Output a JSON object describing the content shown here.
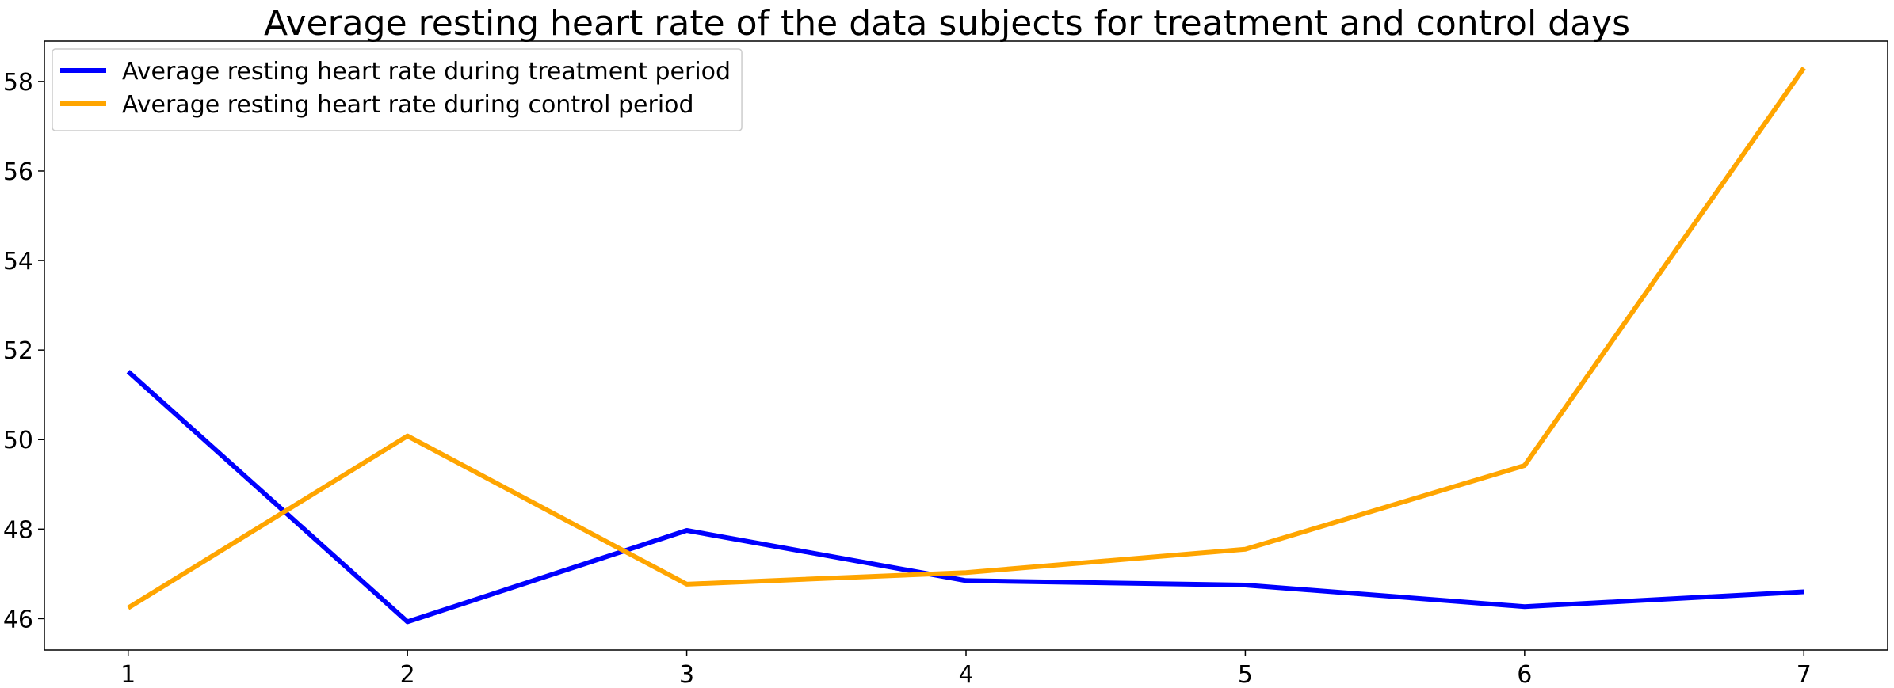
{
  "chart_data": {
    "type": "line",
    "title": "Average resting heart rate of the data subjects for treatment and control days",
    "xlabel": "",
    "ylabel": "",
    "x": [
      1,
      2,
      3,
      4,
      5,
      6,
      7
    ],
    "xticks": [
      "1",
      "2",
      "3",
      "4",
      "5",
      "6",
      "7"
    ],
    "xlim": [
      0.7,
      7.3
    ],
    "ylim": [
      45.3,
      58.9
    ],
    "yticks": [
      "46",
      "48",
      "50",
      "52",
      "54",
      "56",
      "58"
    ],
    "grid": false,
    "legend_position": "upper-left",
    "series": [
      {
        "name": "Average resting heart rate during treatment period",
        "color": "#0000ff",
        "values": [
          51.52,
          45.93,
          47.97,
          46.85,
          46.75,
          46.27,
          46.6
        ]
      },
      {
        "name": "Average resting heart rate during control period",
        "color": "#ffa500",
        "values": [
          46.24,
          50.08,
          46.77,
          47.03,
          47.55,
          49.42,
          58.3
        ]
      }
    ]
  }
}
